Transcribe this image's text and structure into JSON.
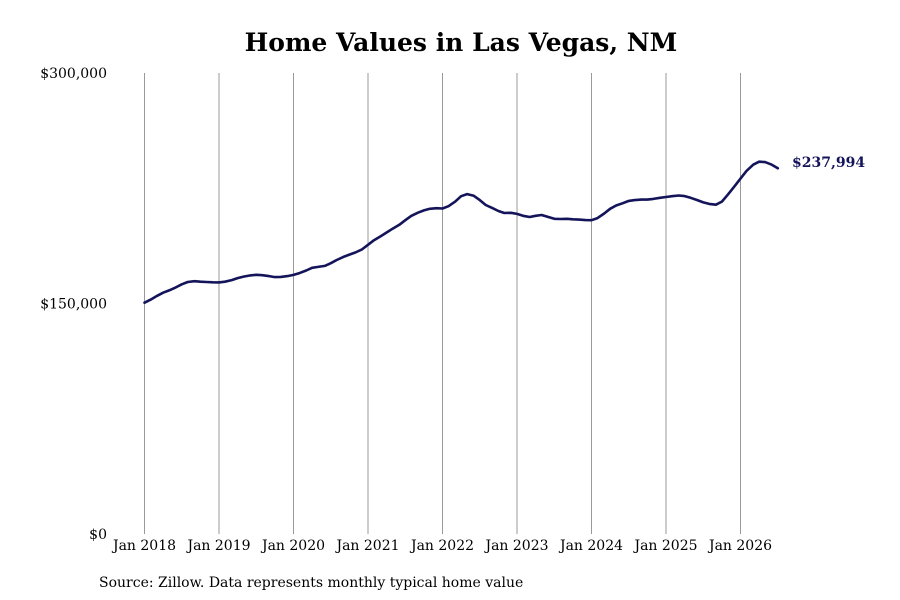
{
  "chart_data": {
    "type": "line",
    "title": "Home Values in Las Vegas, NM",
    "xlabel": "",
    "ylabel": "",
    "ylim": [
      0,
      300000
    ],
    "yticks": [
      {
        "value": 0,
        "label": "$0"
      },
      {
        "value": 150000,
        "label": "$150,000"
      },
      {
        "value": 300000,
        "label": "$300,000"
      }
    ],
    "xticks": [
      {
        "value": 2018.0,
        "label": "Jan 2018"
      },
      {
        "value": 2019.0,
        "label": "Jan 2019"
      },
      {
        "value": 2020.0,
        "label": "Jan 2020"
      },
      {
        "value": 2021.0,
        "label": "Jan 2021"
      },
      {
        "value": 2022.0,
        "label": "Jan 2022"
      },
      {
        "value": 2023.0,
        "label": "Jan 2023"
      },
      {
        "value": 2024.0,
        "label": "Jan 2024"
      },
      {
        "value": 2025.0,
        "label": "Jan 2025"
      },
      {
        "value": 2026.0,
        "label": "Jan 2026"
      }
    ],
    "xlim": [
      2017.75,
      2027.0
    ],
    "grid": "vertical",
    "line_color": "#14145a",
    "end_label": "$237,994",
    "series": [
      {
        "points": [
          [
            2018.0,
            150500
          ],
          [
            2018.08,
            152500
          ],
          [
            2018.17,
            155000
          ],
          [
            2018.25,
            157000
          ],
          [
            2018.33,
            158500
          ],
          [
            2018.42,
            160500
          ],
          [
            2018.5,
            162500
          ],
          [
            2018.58,
            164000
          ],
          [
            2018.67,
            164500
          ],
          [
            2018.75,
            164200
          ],
          [
            2018.83,
            164000
          ],
          [
            2018.92,
            163800
          ],
          [
            2019.0,
            163700
          ],
          [
            2019.08,
            164200
          ],
          [
            2019.17,
            165200
          ],
          [
            2019.25,
            166500
          ],
          [
            2019.33,
            167500
          ],
          [
            2019.42,
            168300
          ],
          [
            2019.5,
            168700
          ],
          [
            2019.58,
            168400
          ],
          [
            2019.67,
            167800
          ],
          [
            2019.75,
            167200
          ],
          [
            2019.83,
            167300
          ],
          [
            2019.92,
            167800
          ],
          [
            2020.0,
            168600
          ],
          [
            2020.08,
            169800
          ],
          [
            2020.17,
            171500
          ],
          [
            2020.25,
            173200
          ],
          [
            2020.33,
            173800
          ],
          [
            2020.42,
            174500
          ],
          [
            2020.5,
            176200
          ],
          [
            2020.58,
            178300
          ],
          [
            2020.67,
            180300
          ],
          [
            2020.75,
            181800
          ],
          [
            2020.83,
            183200
          ],
          [
            2020.92,
            185200
          ],
          [
            2021.0,
            188200
          ],
          [
            2021.08,
            191200
          ],
          [
            2021.17,
            193800
          ],
          [
            2021.25,
            196200
          ],
          [
            2021.33,
            198700
          ],
          [
            2021.42,
            201200
          ],
          [
            2021.5,
            204200
          ],
          [
            2021.58,
            207000
          ],
          [
            2021.67,
            209100
          ],
          [
            2021.75,
            210600
          ],
          [
            2021.83,
            211600
          ],
          [
            2021.92,
            212000
          ],
          [
            2022.0,
            211800
          ],
          [
            2022.08,
            213300
          ],
          [
            2022.17,
            216300
          ],
          [
            2022.25,
            219800
          ],
          [
            2022.33,
            221200
          ],
          [
            2022.42,
            220100
          ],
          [
            2022.5,
            217300
          ],
          [
            2022.58,
            214100
          ],
          [
            2022.67,
            212100
          ],
          [
            2022.75,
            210200
          ],
          [
            2022.83,
            208900
          ],
          [
            2022.92,
            209000
          ],
          [
            2023.0,
            208300
          ],
          [
            2023.08,
            207100
          ],
          [
            2023.17,
            206300
          ],
          [
            2023.25,
            207100
          ],
          [
            2023.33,
            207600
          ],
          [
            2023.42,
            206300
          ],
          [
            2023.5,
            205100
          ],
          [
            2023.58,
            205000
          ],
          [
            2023.67,
            205100
          ],
          [
            2023.75,
            204800
          ],
          [
            2023.83,
            204600
          ],
          [
            2023.92,
            204300
          ],
          [
            2024.0,
            204200
          ],
          [
            2024.08,
            205600
          ],
          [
            2024.17,
            208600
          ],
          [
            2024.25,
            211600
          ],
          [
            2024.33,
            213800
          ],
          [
            2024.42,
            215300
          ],
          [
            2024.5,
            216800
          ],
          [
            2024.58,
            217300
          ],
          [
            2024.67,
            217600
          ],
          [
            2024.75,
            217600
          ],
          [
            2024.83,
            218100
          ],
          [
            2024.92,
            218800
          ],
          [
            2025.0,
            219300
          ],
          [
            2025.08,
            219800
          ],
          [
            2025.17,
            220300
          ],
          [
            2025.25,
            219900
          ],
          [
            2025.33,
            218800
          ],
          [
            2025.42,
            217300
          ],
          [
            2025.5,
            215800
          ],
          [
            2025.58,
            214800
          ],
          [
            2025.67,
            214300
          ],
          [
            2025.75,
            216300
          ],
          [
            2025.83,
            220800
          ],
          [
            2025.92,
            226300
          ],
          [
            2026.0,
            231300
          ],
          [
            2026.08,
            236300
          ],
          [
            2026.17,
            240300
          ],
          [
            2026.25,
            242300
          ],
          [
            2026.33,
            242000
          ],
          [
            2026.42,
            240300
          ],
          [
            2026.5,
            237994
          ]
        ]
      }
    ]
  },
  "footer": {
    "source": "Source: Zillow. Data represents monthly typical home value"
  }
}
